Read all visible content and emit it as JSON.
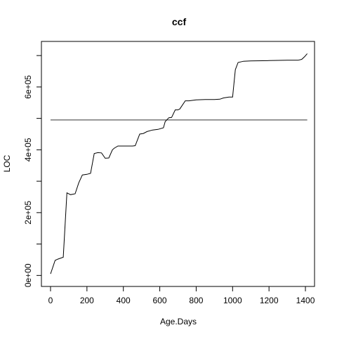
{
  "chart_data": {
    "type": "line",
    "title": "ccf",
    "xlabel": "Age.Days",
    "ylabel": "LOC",
    "xlim": [
      -50,
      1450
    ],
    "ylim": [
      -35000,
      745000
    ],
    "x_ticks": [
      0,
      200,
      400,
      600,
      800,
      1000,
      1200,
      1400
    ],
    "x_tick_labels": [
      "0",
      "200",
      "400",
      "600",
      "800",
      "1000",
      "1200",
      "1400"
    ],
    "y_ticks": [
      0,
      100000,
      200000,
      300000,
      400000,
      500000,
      600000,
      700000
    ],
    "y_tick_labels": [
      "0e+00",
      "",
      "2e+05",
      "",
      "4e+05",
      "",
      "6e+05",
      ""
    ],
    "grid": false,
    "horizontal_line": 495000,
    "series": [
      {
        "x": [
          0,
          25,
          40,
          70,
          90,
          110,
          135,
          155,
          175,
          200,
          220,
          240,
          260,
          280,
          300,
          320,
          340,
          350,
          370,
          390,
          420,
          450,
          465,
          490,
          510,
          530,
          560,
          590,
          620,
          630,
          650,
          665,
          685,
          700,
          710,
          740,
          760,
          800,
          850,
          900,
          930,
          950,
          980,
          1000,
          1015,
          1030,
          1060,
          1100,
          1200,
          1300,
          1360,
          1380,
          1395,
          1410
        ],
        "y": [
          5000,
          48000,
          52000,
          58000,
          263000,
          257000,
          260000,
          295000,
          320000,
          322000,
          325000,
          388000,
          391000,
          390000,
          373000,
          374000,
          400000,
          405000,
          412000,
          412000,
          412000,
          412000,
          413000,
          450000,
          452000,
          458000,
          463000,
          465000,
          470000,
          490000,
          502000,
          503000,
          527000,
          527000,
          530000,
          556000,
          556000,
          559000,
          560000,
          560000,
          561000,
          565000,
          568000,
          568000,
          655000,
          678000,
          682000,
          683000,
          684000,
          685000,
          685000,
          688000,
          696000,
          706000
        ]
      }
    ]
  }
}
